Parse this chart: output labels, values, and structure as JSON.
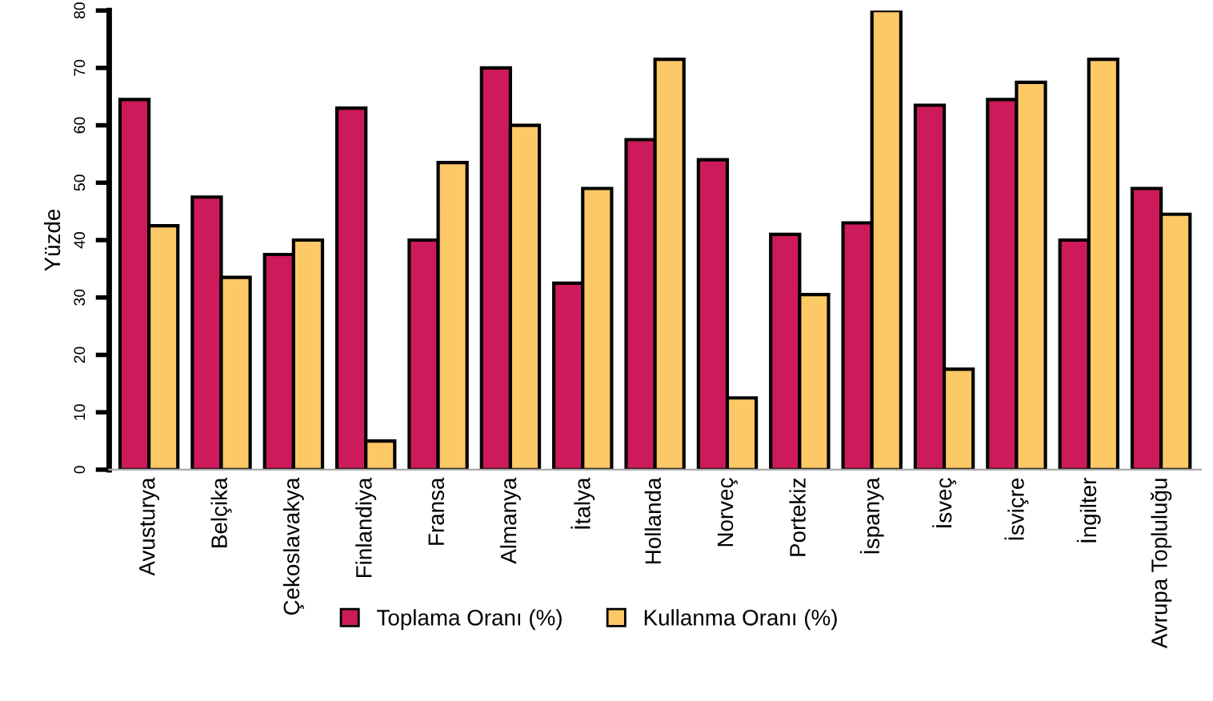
{
  "chart_data": {
    "type": "bar",
    "ylabel": "Yüzde",
    "categories": [
      "Avusturya",
      "Belçika",
      "Çekoslavakya",
      "Finlandiya",
      "Fransa",
      "Almanya",
      "İtalya",
      "Hollanda",
      "Norveç",
      "Portekiz",
      "İspanya",
      "İsveç",
      "İsviçre",
      "İngilter",
      "Avrupa Topluluğu"
    ],
    "series": [
      {
        "name": "Toplama Oranı (%)",
        "color": "#cc1a5a",
        "values": [
          64.5,
          47.5,
          37.5,
          63,
          40,
          70,
          32.5,
          57.5,
          54,
          41,
          43,
          63.5,
          64.5,
          40,
          49
        ]
      },
      {
        "name": "Kullanma Oranı (%)",
        "color": "#fdc966",
        "values": [
          42.5,
          33.5,
          40,
          5,
          53.5,
          60,
          49,
          71.5,
          12.5,
          30.5,
          80,
          17.5,
          67.5,
          71.5,
          44.5
        ]
      }
    ],
    "ylim": [
      0,
      80
    ],
    "yticks": [
      0,
      10,
      20,
      30,
      40,
      50,
      60,
      70,
      80
    ],
    "grid": false,
    "legend": "bottom"
  }
}
